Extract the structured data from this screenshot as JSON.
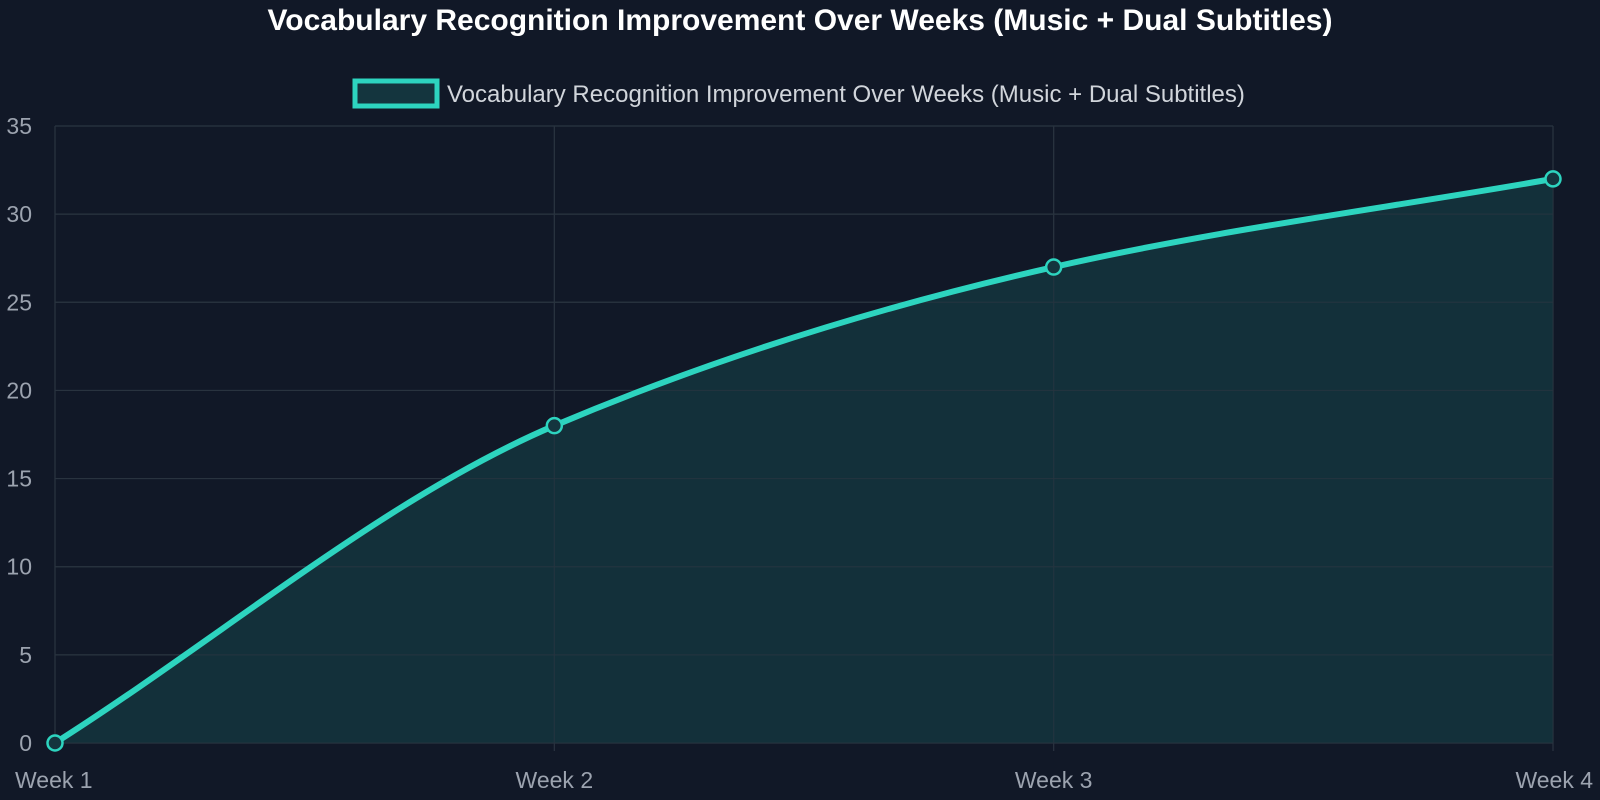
{
  "chart_data": {
    "type": "area",
    "title": "Vocabulary Recognition Improvement Over Weeks (Music + Dual Subtitles)",
    "categories": [
      "Week 1",
      "Week 2",
      "Week 3",
      "Week 4"
    ],
    "series": [
      {
        "name": "Vocabulary Recognition Improvement Over Weeks (Music + Dual Subtitles)",
        "values": [
          0,
          18,
          27,
          32
        ]
      }
    ],
    "ylim": [
      0,
      35
    ],
    "yticks": [
      0,
      5,
      10,
      15,
      20,
      25,
      30,
      35
    ],
    "grid": true,
    "legend_position": "top",
    "colors": {
      "background": "#111827",
      "line": "#2DD4BF",
      "fill": "#14353E",
      "grid": "#2A3340",
      "tick_text": "#9CA3AF",
      "title_text": "#FFFFFF",
      "legend_text": "#D1D5DB"
    }
  }
}
